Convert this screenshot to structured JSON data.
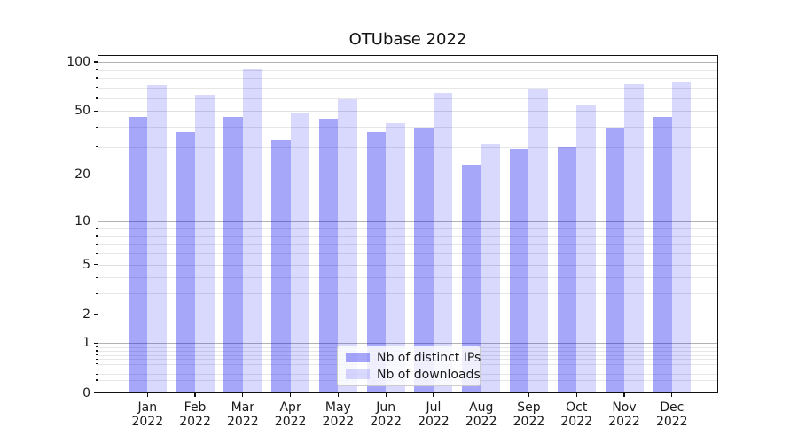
{
  "chart_data": {
    "type": "bar",
    "title": "OTUbase 2022",
    "categories": [
      "Jan",
      "Feb",
      "Mar",
      "Apr",
      "May",
      "Jun",
      "Jul",
      "Aug",
      "Sep",
      "Oct",
      "Nov",
      "Dec"
    ],
    "category_year": "2022",
    "series": [
      {
        "name": "Nb of distinct IPs",
        "color": "rgba(0,0,240,0.345)",
        "values": [
          46,
          37,
          46,
          33,
          45,
          37,
          39,
          23,
          29,
          30,
          39,
          46
        ]
      },
      {
        "name": "Nb of downloads",
        "color": "rgba(0,0,240,0.15)",
        "values": [
          72,
          63,
          91,
          49,
          59,
          42,
          65,
          31,
          69,
          55,
          73,
          75
        ]
      }
    ],
    "xlabel": "",
    "ylabel": "",
    "y_axis": {
      "scale": "log1p",
      "ylim": [
        0,
        111
      ],
      "tick_values": [
        0,
        1,
        2,
        5,
        10,
        20,
        50,
        100
      ],
      "tick_labels": [
        "0",
        "1",
        "2",
        "5",
        "10",
        "20",
        "50",
        "100"
      ],
      "major_grid_values": [
        1,
        10,
        100
      ],
      "labeled_minor_grid_values": [
        2,
        5,
        20,
        50
      ],
      "minor_grid_values": [
        0.2,
        0.3,
        0.4,
        0.5,
        0.6,
        0.7,
        0.8,
        0.9,
        3,
        4,
        6,
        7,
        8,
        9,
        30,
        40,
        60,
        70,
        80,
        90
      ]
    },
    "grid": true,
    "legend_position": "lower center",
    "colors": {
      "major_grid": "#b3b3b3",
      "labeled_minor_grid": "#e0e0e0",
      "minor_grid": "#e7e7e7",
      "axis": "#111111",
      "text": "#1a1a1a"
    }
  }
}
